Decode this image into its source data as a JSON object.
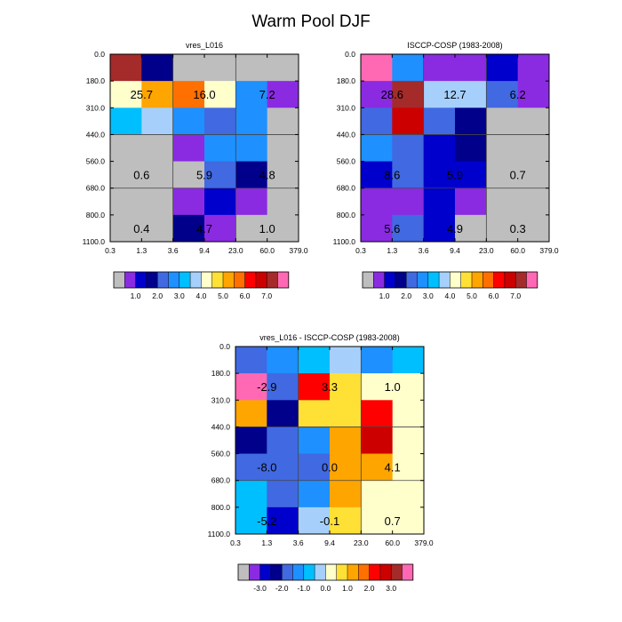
{
  "figure": {
    "title": "Warm Pool DJF"
  },
  "palettes": {
    "absolute": [
      "#bebebe",
      "#8a2be2",
      "#0000cd",
      "#00008b",
      "#4169e1",
      "#1e90ff",
      "#00bfff",
      "#a6d0fb",
      "#ffffcc",
      "#ffe035",
      "#ffa500",
      "#ff7000",
      "#ff0000",
      "#cd0000",
      "#a52a2a",
      "#ff69b4"
    ],
    "difference": [
      "#bebebe",
      "#8a2be2",
      "#0000cd",
      "#00008b",
      "#4169e1",
      "#1e90ff",
      "#00bfff",
      "#a6d0fb",
      "#ffffcc",
      "#ffe035",
      "#ffa500",
      "#ff7000",
      "#ff0000",
      "#cd0000",
      "#a52a2a",
      "#ff69b4"
    ]
  },
  "chart_data": [
    {
      "type": "heatmap",
      "title": "vres_L016",
      "x_ticks": [
        "0.3",
        "1.3",
        "3.6",
        "9.4",
        "23.0",
        "60.0",
        "379.0"
      ],
      "y_ticks": [
        "0.0",
        "180.0",
        "310.0",
        "440.0",
        "560.0",
        "680.0",
        "800.0",
        "1100.0"
      ],
      "palette": "absolute",
      "cell_colors": [
        [
          14,
          3,
          0,
          0,
          0,
          0
        ],
        [
          8,
          10,
          11,
          8,
          5,
          1
        ],
        [
          6,
          7,
          5,
          4,
          5,
          0
        ],
        [
          0,
          0,
          1,
          5,
          5,
          0
        ],
        [
          0,
          0,
          0,
          4,
          3,
          0
        ],
        [
          0,
          0,
          1,
          2,
          1,
          0
        ],
        [
          0,
          0,
          3,
          1,
          0,
          0
        ]
      ],
      "annotations": [
        {
          "text": "25.7",
          "row": 1,
          "col": 0.5
        },
        {
          "text": "16.0",
          "row": 1,
          "col": 2.5
        },
        {
          "text": "7.2",
          "row": 1,
          "col": 4.5
        },
        {
          "text": "0.6",
          "row": 4,
          "col": 0.5
        },
        {
          "text": "5.9",
          "row": 4,
          "col": 2.5
        },
        {
          "text": "4.8",
          "row": 4,
          "col": 4.5
        },
        {
          "text": "0.4",
          "row": 6,
          "col": 0.5
        },
        {
          "text": "4.7",
          "row": 6,
          "col": 2.5
        },
        {
          "text": "1.0",
          "row": 6,
          "col": 4.5
        }
      ],
      "colorbar": {
        "palette": "absolute",
        "labels": [
          "1.0",
          "2.0",
          "3.0",
          "4.0",
          "5.0",
          "6.0",
          "7.0"
        ],
        "label_bounds": [
          2,
          4,
          6,
          8,
          10,
          12,
          14
        ]
      }
    },
    {
      "type": "heatmap",
      "title": "ISCCP-COSP (1983-2008)",
      "x_ticks": [
        "0.3",
        "1.3",
        "3.6",
        "9.4",
        "23.0",
        "60.0",
        "379.0"
      ],
      "y_ticks": [
        "0.0",
        "180.0",
        "310.0",
        "440.0",
        "560.0",
        "680.0",
        "800.0",
        "1100.0"
      ],
      "palette": "absolute",
      "cell_colors": [
        [
          15,
          5,
          1,
          1,
          2,
          1
        ],
        [
          1,
          14,
          7,
          7,
          4,
          1
        ],
        [
          4,
          13,
          4,
          3,
          0,
          0
        ],
        [
          5,
          4,
          2,
          3,
          0,
          0
        ],
        [
          2,
          4,
          2,
          2,
          0,
          0
        ],
        [
          1,
          1,
          2,
          1,
          0,
          0
        ],
        [
          1,
          4,
          2,
          0,
          0,
          0
        ]
      ],
      "annotations": [
        {
          "text": "28.6",
          "row": 1,
          "col": 0.5
        },
        {
          "text": "12.7",
          "row": 1,
          "col": 2.5
        },
        {
          "text": "6.2",
          "row": 1,
          "col": 4.5
        },
        {
          "text": "8.6",
          "row": 4,
          "col": 0.5
        },
        {
          "text": "5.9",
          "row": 4,
          "col": 2.5
        },
        {
          "text": "0.7",
          "row": 4,
          "col": 4.5
        },
        {
          "text": "5.6",
          "row": 6,
          "col": 0.5
        },
        {
          "text": "4.9",
          "row": 6,
          "col": 2.5
        },
        {
          "text": "0.3",
          "row": 6,
          "col": 4.5
        }
      ],
      "colorbar": {
        "palette": "absolute",
        "labels": [
          "1.0",
          "2.0",
          "3.0",
          "4.0",
          "5.0",
          "6.0",
          "7.0"
        ],
        "label_bounds": [
          2,
          4,
          6,
          8,
          10,
          12,
          14
        ]
      }
    },
    {
      "type": "heatmap",
      "title": "vres_L016 - ISCCP-COSP (1983-2008)",
      "x_ticks": [
        "0.3",
        "1.3",
        "3.6",
        "9.4",
        "23.0",
        "60.0",
        "379.0"
      ],
      "y_ticks": [
        "0.0",
        "180.0",
        "310.0",
        "440.0",
        "560.0",
        "680.0",
        "800.0",
        "1100.0"
      ],
      "palette": "difference",
      "cell_colors": [
        [
          4,
          5,
          6,
          7,
          5,
          6
        ],
        [
          15,
          4,
          12,
          9,
          8,
          8
        ],
        [
          10,
          3,
          9,
          9,
          12,
          8
        ],
        [
          3,
          4,
          5,
          10,
          13,
          8
        ],
        [
          4,
          4,
          4,
          10,
          10,
          8
        ],
        [
          6,
          4,
          5,
          10,
          8,
          8
        ],
        [
          6,
          2,
          7,
          9,
          8,
          8
        ]
      ],
      "annotations": [
        {
          "text": "-2.9",
          "row": 1,
          "col": 0.5
        },
        {
          "text": "3.3",
          "row": 1,
          "col": 2.5
        },
        {
          "text": "1.0",
          "row": 1,
          "col": 4.5
        },
        {
          "text": "-8.0",
          "row": 4,
          "col": 0.5
        },
        {
          "text": "0.0",
          "row": 4,
          "col": 2.5
        },
        {
          "text": "4.1",
          "row": 4,
          "col": 4.5
        },
        {
          "text": "-5.2",
          "row": 6,
          "col": 0.5
        },
        {
          "text": "-0.1",
          "row": 6,
          "col": 2.5
        },
        {
          "text": "0.7",
          "row": 6,
          "col": 4.5
        }
      ],
      "colorbar": {
        "palette": "difference",
        "labels": [
          "-3.0",
          "-2.0",
          "-1.0",
          "0.0",
          "1.0",
          "2.0",
          "3.0"
        ],
        "label_bounds": [
          2,
          4,
          6,
          8,
          10,
          12,
          14
        ]
      }
    }
  ]
}
